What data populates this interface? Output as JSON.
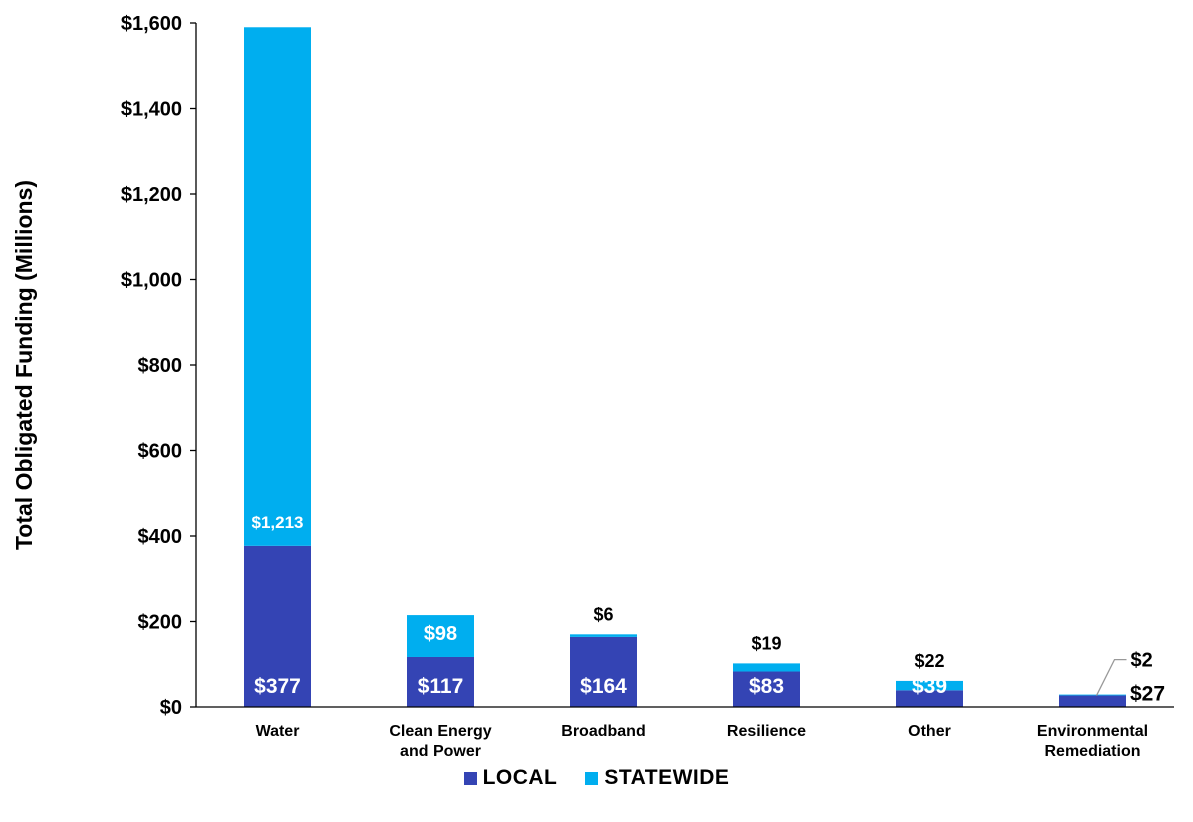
{
  "chart_data": {
    "type": "bar",
    "stacked": true,
    "title": "",
    "ylabel": "Total Obligated Funding (Millions)",
    "xlabel": "",
    "ylim": [
      0,
      1600
    ],
    "yticks": [
      0,
      200,
      400,
      600,
      800,
      1000,
      1200,
      1400,
      1600
    ],
    "ytick_labels": [
      "$0",
      "$200",
      "$400",
      "$600",
      "$800",
      "$1,000",
      "$1,200",
      "$1,400",
      "$1,600"
    ],
    "categories": [
      [
        "Water"
      ],
      [
        "Clean Energy",
        "and Power"
      ],
      [
        "Broadband"
      ],
      [
        "Resilience"
      ],
      [
        "Other"
      ],
      [
        "Environmental",
        "Remediation"
      ]
    ],
    "series": [
      {
        "name": "LOCAL",
        "color": "#3444b4",
        "values": [
          377,
          117,
          164,
          83,
          39,
          27
        ],
        "labels": [
          "$377",
          "$117",
          "$164",
          "$83",
          "$39",
          "$27"
        ]
      },
      {
        "name": "STATEWIDE",
        "color": "#00aeef",
        "values": [
          1213,
          98,
          6,
          19,
          22,
          2
        ],
        "labels": [
          "$1,213",
          "$98",
          "$6",
          "$19",
          "$22",
          "$2"
        ]
      }
    ],
    "grid": false,
    "legend_position": "bottom"
  }
}
